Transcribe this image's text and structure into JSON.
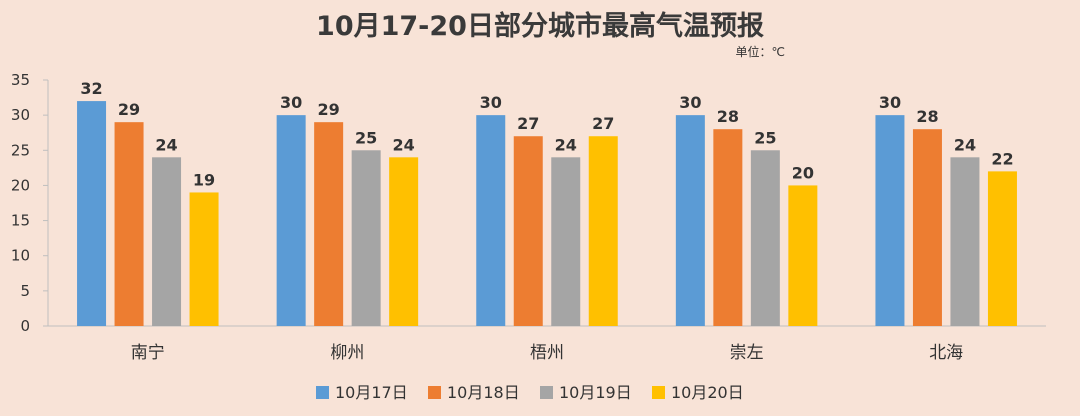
{
  "chart_data": {
    "type": "bar",
    "title": "10月17-20日部分城市最高气温预报",
    "unit": "单位：℃",
    "categories": [
      "南宁",
      "柳州",
      "梧州",
      "崇左",
      "北海"
    ],
    "series": [
      {
        "name": "10月17日",
        "color": "#5b9bd5",
        "values": [
          32,
          30,
          30,
          30,
          30
        ]
      },
      {
        "name": "10月18日",
        "color": "#ed7d31",
        "values": [
          29,
          29,
          27,
          28,
          28
        ]
      },
      {
        "name": "10月19日",
        "color": "#a5a5a5",
        "values": [
          24,
          25,
          24,
          25,
          24
        ]
      },
      {
        "name": "10月20日",
        "color": "#ffc000",
        "values": [
          19,
          24,
          27,
          20,
          22
        ]
      }
    ],
    "ylim": [
      0,
      35
    ],
    "yticks": [
      0,
      5,
      10,
      15,
      20,
      25,
      30,
      35
    ],
    "legend": "bottom",
    "grid": false
  }
}
